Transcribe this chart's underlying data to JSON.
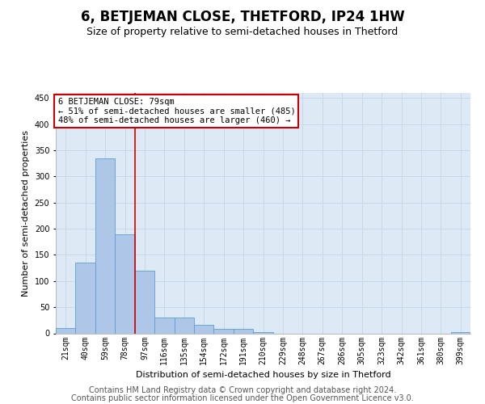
{
  "title": "6, BETJEMAN CLOSE, THETFORD, IP24 1HW",
  "subtitle": "Size of property relative to semi-detached houses in Thetford",
  "xlabel": "Distribution of semi-detached houses by size in Thetford",
  "ylabel": "Number of semi-detached properties",
  "categories": [
    "21sqm",
    "40sqm",
    "59sqm",
    "78sqm",
    "97sqm",
    "116sqm",
    "135sqm",
    "154sqm",
    "172sqm",
    "191sqm",
    "210sqm",
    "229sqm",
    "248sqm",
    "267sqm",
    "286sqm",
    "305sqm",
    "323sqm",
    "342sqm",
    "361sqm",
    "380sqm",
    "399sqm"
  ],
  "values": [
    10,
    135,
    335,
    190,
    120,
    30,
    30,
    17,
    8,
    8,
    3,
    0,
    0,
    0,
    0,
    0,
    0,
    0,
    0,
    0,
    3
  ],
  "bar_color": "#aec6e8",
  "bar_edge_color": "#5a9fd4",
  "grid_color": "#c8d8e8",
  "background_color": "#ddeaf6",
  "vline_color": "#cc0000",
  "vline_x_index": 3,
  "annotation_title": "6 BETJEMAN CLOSE: 79sqm",
  "annotation_line1": "← 51% of semi-detached houses are smaller (485)",
  "annotation_line2": "48% of semi-detached houses are larger (460) →",
  "annotation_box_facecolor": "#ffffff",
  "annotation_box_edgecolor": "#cc0000",
  "footer_line1": "Contains HM Land Registry data © Crown copyright and database right 2024.",
  "footer_line2": "Contains public sector information licensed under the Open Government Licence v3.0.",
  "ylim_max": 460,
  "yticks": [
    0,
    50,
    100,
    150,
    200,
    250,
    300,
    350,
    400,
    450
  ],
  "title_fontsize": 12,
  "subtitle_fontsize": 9,
  "axis_label_fontsize": 8,
  "tick_fontsize": 7,
  "footer_fontsize": 7,
  "annotation_fontsize": 7.5
}
